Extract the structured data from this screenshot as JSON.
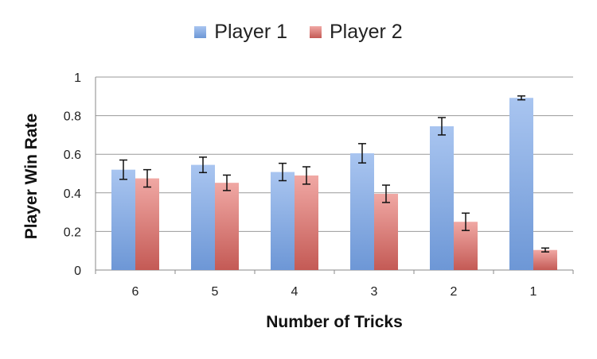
{
  "chart_data": {
    "type": "bar",
    "categories": [
      "6",
      "5",
      "4",
      "3",
      "2",
      "1"
    ],
    "series": [
      {
        "name": "Player 1",
        "color": "#7ea6e0",
        "values": [
          0.52,
          0.545,
          0.508,
          0.605,
          0.745,
          0.892
        ],
        "errors": [
          0.05,
          0.04,
          0.045,
          0.05,
          0.045,
          0.01
        ]
      },
      {
        "name": "Player 2",
        "color": "#d06b66",
        "values": [
          0.475,
          0.452,
          0.49,
          0.395,
          0.25,
          0.104
        ],
        "errors": [
          0.045,
          0.04,
          0.045,
          0.045,
          0.045,
          0.01
        ]
      }
    ],
    "ylabel": "Player Win Rate",
    "xlabel": "Number of Tricks",
    "ylim": [
      0,
      1
    ],
    "yticks": [
      "0",
      "0.2",
      "0.4",
      "0.6",
      "0.8",
      "1"
    ],
    "legend_position": "top",
    "grid": true
  }
}
